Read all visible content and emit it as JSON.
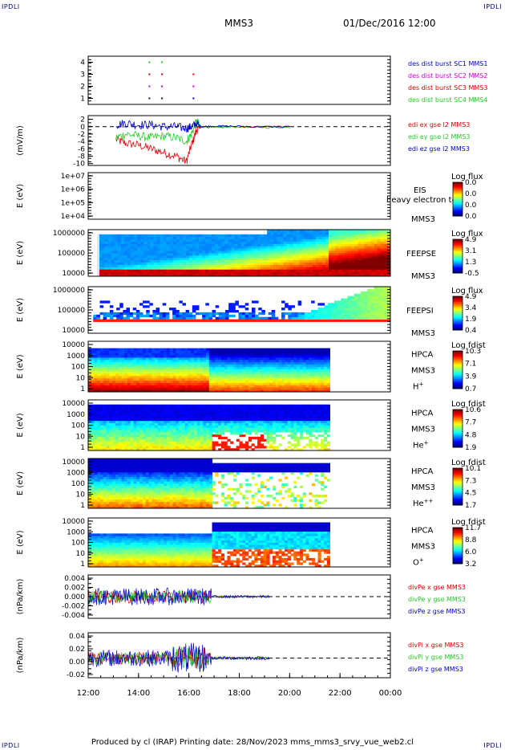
{
  "corner_tl": "IPDLI",
  "corner_tr": "IPDLI",
  "corner_bl": "IPDLI",
  "corner_br": "IPDLI",
  "title": "MMS3",
  "datetime": "01/Dec/2016 12:00",
  "footer": "Produced by cl (IRAP)   Printing date: 28/Nov/2023   mms_mms3_srvy_vue_web2.cl",
  "colors": {
    "red": "#dd0000",
    "green": "#22cc22",
    "blue": "#0000cc",
    "magenta": "#cc00cc"
  },
  "chart_data": {
    "type": "multi-panel time series",
    "xaxis": {
      "start": "12:00",
      "end": "00:00",
      "ticks": [
        "12:00",
        "14:00",
        "16:00",
        "18:00",
        "20:00",
        "22:00",
        "00:00"
      ],
      "hours": [
        12,
        24
      ]
    },
    "panels": [
      {
        "id": "burst",
        "ylabel": "",
        "yticks": [
          "4",
          "3",
          "2",
          "1"
        ],
        "ylim": [
          0.5,
          4.5
        ],
        "legend": [
          {
            "text": "des dist burst SC1 MMS1",
            "color": "#0000cc"
          },
          {
            "text": "des dist burst SC2 MMS2",
            "color": "#cc00cc"
          },
          {
            "text": "des dist burst SC3 MMS3",
            "color": "#dd0000"
          },
          {
            "text": "des dist burst SC4 MMS4",
            "color": "#22cc22"
          }
        ],
        "markers": [
          {
            "sc": 4,
            "hours": [
              14.4,
              14.9
            ]
          },
          {
            "sc": 3,
            "hours": [
              14.4,
              14.9,
              16.15
            ]
          },
          {
            "sc": 2,
            "hours": [
              14.4,
              14.9,
              16.15
            ]
          },
          {
            "sc": 1,
            "hours": [
              14.4,
              14.9,
              16.15
            ]
          }
        ]
      },
      {
        "id": "edi",
        "ylabel": "(mV/m)",
        "yticks": [
          "2",
          "0",
          "-2",
          "-4",
          "-6",
          "-8",
          "-10"
        ],
        "ylim": [
          -10.5,
          3
        ],
        "legend": [
          {
            "text": "edi ex gse l2 MMS3",
            "color": "#dd0000"
          },
          {
            "text": "edi ey gse l2 MMS3",
            "color": "#22cc22"
          },
          {
            "text": "edi ez gse l2 MMS3",
            "color": "#0000cc"
          }
        ],
        "series": [
          {
            "name": "edi ex gse l2 MMS3",
            "color": "#dd0000",
            "points": [
              [
                13.1,
                -3.5
              ],
              [
                13.5,
                -4.5
              ],
              [
                14.0,
                -5
              ],
              [
                14.5,
                -6
              ],
              [
                15.0,
                -7
              ],
              [
                15.5,
                -8
              ],
              [
                15.9,
                -9.5
              ],
              [
                16.1,
                -5
              ],
              [
                16.3,
                -1
              ],
              [
                16.5,
                0
              ],
              [
                17.0,
                0
              ],
              [
                18.0,
                0
              ],
              [
                19.0,
                0
              ],
              [
                20.1,
                0
              ]
            ]
          },
          {
            "name": "edi ey gse l2 MMS3",
            "color": "#22cc22",
            "points": [
              [
                13.1,
                -3
              ],
              [
                13.5,
                -2
              ],
              [
                14.0,
                -2.5
              ],
              [
                14.5,
                -3
              ],
              [
                15.0,
                -2.5
              ],
              [
                15.5,
                -3
              ],
              [
                15.9,
                -4
              ],
              [
                16.1,
                -2
              ],
              [
                16.3,
                1.5
              ],
              [
                16.5,
                0
              ],
              [
                17.0,
                -0.3
              ],
              [
                18.0,
                0
              ],
              [
                19.0,
                -0.2
              ],
              [
                20.1,
                -0.2
              ]
            ]
          },
          {
            "name": "edi ez gse l2 MMS3",
            "color": "#0000cc",
            "points": [
              [
                13.1,
                0.5
              ],
              [
                13.5,
                1
              ],
              [
                14.0,
                0.5
              ],
              [
                14.5,
                0.5
              ],
              [
                15.0,
                0
              ],
              [
                15.5,
                0
              ],
              [
                15.9,
                -0.5
              ],
              [
                16.1,
                0
              ],
              [
                16.3,
                0.8
              ],
              [
                16.5,
                0
              ],
              [
                17.0,
                0.2
              ],
              [
                18.0,
                0.1
              ],
              [
                19.0,
                0
              ],
              [
                20.1,
                0
              ]
            ]
          }
        ]
      },
      {
        "id": "eis",
        "ylabel": "E (eV)",
        "yticks": [
          "1e+07",
          "1e+06",
          "1e+05",
          "1e+04"
        ],
        "label": [
          "EIS",
          "heavy electron to",
          "MMS3"
        ],
        "cbar": {
          "title": "Log flux",
          "ticks": [
            "0.0",
            "0.0",
            "0.0",
            "0.0"
          ]
        }
      },
      {
        "id": "feepse",
        "ylabel": "E (eV)",
        "yticks": [
          "1000000",
          "100000",
          "10000"
        ],
        "label": [
          "FEEPSE",
          "MMS3"
        ],
        "cbar": {
          "title": "Log flux",
          "ticks": [
            "4.9",
            "3.1",
            "1.3",
            "-0.5"
          ]
        }
      },
      {
        "id": "feepsi",
        "ylabel": "E (eV)",
        "yticks": [
          "1000000",
          "100000",
          "10000"
        ],
        "label": [
          "FEEPSI",
          "MMS3"
        ],
        "cbar": {
          "title": "Log flux",
          "ticks": [
            "4.9",
            "3.4",
            "1.9",
            "0.4"
          ]
        }
      },
      {
        "id": "hpca-h",
        "ylabel": "E (eV)",
        "yticks": [
          "10000",
          "1000",
          "100",
          "10",
          "1"
        ],
        "label": [
          "HPCA",
          "MMS3",
          "H+"
        ],
        "cbar": {
          "title": "Log fdist",
          "ticks": [
            "10.3",
            "7.1",
            "3.9",
            "0.7"
          ]
        }
      },
      {
        "id": "hpca-he",
        "ylabel": "E (eV)",
        "yticks": [
          "10000",
          "1000",
          "100",
          "10",
          "1"
        ],
        "label": [
          "HPCA",
          "MMS3",
          "He+"
        ],
        "cbar": {
          "title": "Log fdist",
          "ticks": [
            "10.6",
            "7.7",
            "4.8",
            "1.9"
          ]
        }
      },
      {
        "id": "hpca-hepp",
        "ylabel": "E (eV)",
        "yticks": [
          "10000",
          "1000",
          "100",
          "10",
          "1"
        ],
        "label": [
          "HPCA",
          "MMS3",
          "He++"
        ],
        "cbar": {
          "title": "Log fdist",
          "ticks": [
            "10.1",
            "7.3",
            "4.5",
            "1.7"
          ]
        }
      },
      {
        "id": "hpca-o",
        "ylabel": "E (eV)",
        "yticks": [
          "10000",
          "1000",
          "100",
          "10",
          "1"
        ],
        "label": [
          "HPCA",
          "MMS3",
          "O+"
        ],
        "cbar": {
          "title": "Log fdist",
          "ticks": [
            "11.7",
            "8.8",
            "6.0",
            "3.2"
          ]
        }
      },
      {
        "id": "divpe",
        "ylabel": "(nPa/km)",
        "yticks": [
          "0.004",
          "0.002",
          "0.000",
          "-0.002",
          "-0.004"
        ],
        "ylim": [
          -0.005,
          0.005
        ],
        "legend": [
          {
            "text": "divPe x gse MMS3",
            "color": "#dd0000"
          },
          {
            "text": "divPe y gse MMS3",
            "color": "#22cc22"
          },
          {
            "text": "divPe z gse MMS3",
            "color": "#0000cc"
          }
        ],
        "noise": {
          "start": 12.0,
          "end": 16.9,
          "amp": 0.002,
          "quiet_end": 19.2,
          "quiet_amp": 0.0003
        }
      },
      {
        "id": "divpi",
        "ylabel": "(nPa/km)",
        "yticks": [
          "0.04",
          "0.02",
          "0.00",
          "-0.02"
        ],
        "ylim": [
          -0.035,
          0.045
        ],
        "legend": [
          {
            "text": "divPi x gse MMS3",
            "color": "#dd0000"
          },
          {
            "text": "divPi y gse MMS3",
            "color": "#22cc22"
          },
          {
            "text": "divPi z gse MMS3",
            "color": "#0000cc"
          }
        ],
        "noise": {
          "start": 12.0,
          "end": 16.9,
          "amp": 0.015,
          "quiet_end": 19.2,
          "quiet_amp": 0.003
        }
      }
    ]
  }
}
